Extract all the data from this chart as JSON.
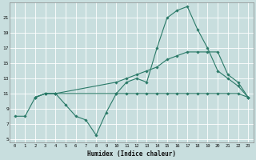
{
  "xlabel": "Humidex (Indice chaleur)",
  "bg_color": "#c8dede",
  "grid_color": "#ffffff",
  "line_color": "#2a7a68",
  "xlim": [
    -0.5,
    23.5
  ],
  "ylim": [
    4.5,
    23.0
  ],
  "yticks": [
    5,
    7,
    9,
    11,
    13,
    15,
    17,
    19,
    21
  ],
  "xticks": [
    0,
    1,
    2,
    3,
    4,
    5,
    6,
    7,
    8,
    9,
    10,
    11,
    12,
    13,
    14,
    15,
    16,
    17,
    18,
    19,
    20,
    21,
    22,
    23
  ],
  "line1_x": [
    0,
    1,
    2,
    3,
    4,
    5,
    6,
    7,
    8,
    9,
    10,
    11,
    12,
    13,
    14,
    15,
    16,
    17,
    18,
    19,
    20,
    21,
    22,
    23
  ],
  "line1_y": [
    8.0,
    8.0,
    10.5,
    11.0,
    11.0,
    9.5,
    8.0,
    7.5,
    5.5,
    8.5,
    11.0,
    12.5,
    13.0,
    12.5,
    17.0,
    21.0,
    22.0,
    22.5,
    19.5,
    17.0,
    14.0,
    13.0,
    12.0,
    10.5
  ],
  "line2_x": [
    2,
    3,
    4,
    10,
    11,
    12,
    13,
    14,
    15,
    16,
    17,
    18,
    19,
    20,
    21,
    22,
    23
  ],
  "line2_y": [
    10.5,
    11.0,
    11.0,
    12.5,
    13.0,
    13.5,
    14.0,
    14.5,
    15.5,
    16.0,
    16.5,
    16.5,
    16.5,
    16.5,
    13.5,
    12.5,
    10.5
  ],
  "line3_x": [
    2,
    3,
    4,
    10,
    11,
    12,
    13,
    14,
    15,
    16,
    17,
    18,
    19,
    20,
    21,
    22,
    23
  ],
  "line3_y": [
    10.5,
    11.0,
    11.0,
    11.0,
    11.0,
    11.0,
    11.0,
    11.0,
    11.0,
    11.0,
    11.0,
    11.0,
    11.0,
    11.0,
    11.0,
    11.0,
    10.5
  ]
}
